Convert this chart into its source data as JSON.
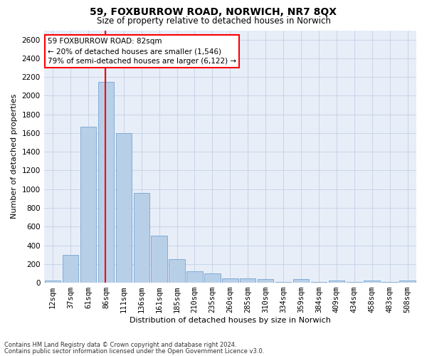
{
  "title": "59, FOXBURROW ROAD, NORWICH, NR7 8QX",
  "subtitle": "Size of property relative to detached houses in Norwich",
  "xlabel": "Distribution of detached houses by size in Norwich",
  "ylabel": "Number of detached properties",
  "footer_line1": "Contains HM Land Registry data © Crown copyright and database right 2024.",
  "footer_line2": "Contains public sector information licensed under the Open Government Licence v3.0.",
  "annotation_line1": "59 FOXBURROW ROAD: 82sqm",
  "annotation_line2": "← 20% of detached houses are smaller (1,546)",
  "annotation_line3": "79% of semi-detached houses are larger (6,122) →",
  "bar_color": "#b8cfe8",
  "bar_edge_color": "#6699cc",
  "vline_color": "red",
  "vline_x": 2.95,
  "categories": [
    "12sqm",
    "37sqm",
    "61sqm",
    "86sqm",
    "111sqm",
    "136sqm",
    "161sqm",
    "185sqm",
    "210sqm",
    "235sqm",
    "260sqm",
    "285sqm",
    "310sqm",
    "334sqm",
    "359sqm",
    "384sqm",
    "409sqm",
    "434sqm",
    "458sqm",
    "483sqm",
    "508sqm"
  ],
  "values": [
    25,
    300,
    1670,
    2150,
    1600,
    960,
    500,
    250,
    120,
    100,
    50,
    50,
    35,
    5,
    35,
    5,
    25,
    5,
    25,
    5,
    25
  ],
  "ylim": [
    0,
    2700
  ],
  "yticks": [
    0,
    200,
    400,
    600,
    800,
    1000,
    1200,
    1400,
    1600,
    1800,
    2000,
    2200,
    2400,
    2600
  ],
  "grid_color": "#c8d4e8",
  "background_color": "#e8eef8",
  "annotation_box_facecolor": "white",
  "annotation_box_edgecolor": "red",
  "fig_facecolor": "white",
  "title_fontsize": 10,
  "subtitle_fontsize": 8.5,
  "axis_label_fontsize": 8,
  "tick_fontsize": 7.5,
  "annotation_fontsize": 7.5,
  "footer_fontsize": 6
}
